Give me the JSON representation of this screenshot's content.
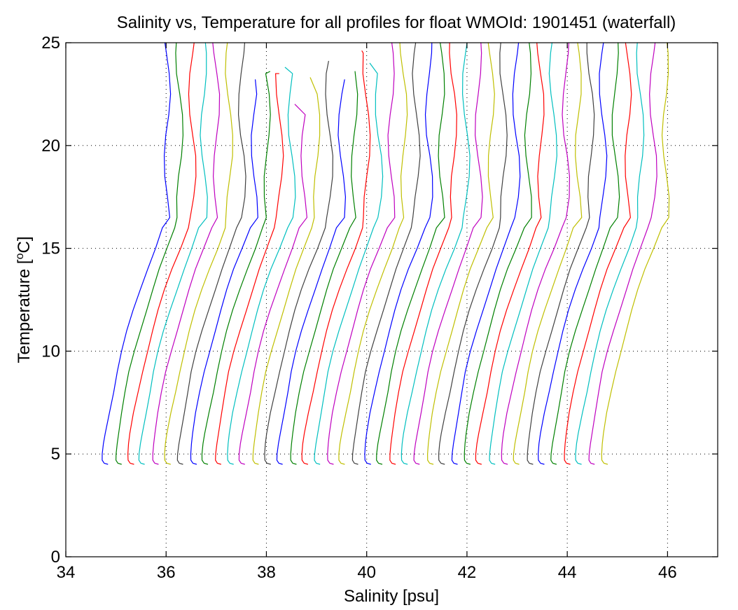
{
  "chart_data": {
    "type": "line",
    "title": "Salinity vs, Temperature for all profiles for float WMOId: 1901451 (waterfall)",
    "xlabel": "Salinity [psu]",
    "ylabel_main": "Temperature [",
    "ylabel_sup": "o",
    "ylabel_tail": "C]",
    "xlim": [
      34,
      47
    ],
    "ylim": [
      0,
      25
    ],
    "xticks": [
      34,
      36,
      38,
      40,
      42,
      44,
      46
    ],
    "yticks": [
      0,
      5,
      10,
      15,
      20,
      25
    ],
    "grid": true,
    "waterfall_offset_psu": 0.25,
    "colors": [
      "#0000ff",
      "#008000",
      "#ff0000",
      "#00bfbf",
      "#bf00bf",
      "#bfbf00",
      "#404040"
    ],
    "reference_profile": {
      "temperature": [
        4.5,
        4.55,
        4.7,
        5.0,
        5.5,
        6.0,
        7.0,
        8.0,
        9.0,
        10.0,
        11.0,
        12.0,
        13.0,
        14.0,
        15.0,
        16.0,
        16.5,
        17.5,
        18.5,
        19.5,
        20.5,
        21.5,
        22.5,
        23.5,
        24.5,
        25.0
      ],
      "salinity": [
        34.85,
        34.78,
        34.74,
        34.74,
        34.76,
        34.79,
        34.86,
        34.94,
        35.02,
        35.12,
        35.23,
        35.35,
        35.48,
        35.62,
        35.78,
        35.93,
        36.02,
        36.03,
        36.03,
        36.03,
        36.02,
        36.02,
        36.02,
        36.01,
        36.01,
        36.01
      ]
    },
    "series": [
      {
        "color": "#0000ff",
        "salinity_offset": 0.0,
        "top_temp": 25.0
      },
      {
        "color": "#008000",
        "salinity_offset": 0.25,
        "top_temp": 25.0
      },
      {
        "color": "#ff0000",
        "salinity_offset": 0.5,
        "top_temp": 25.0
      },
      {
        "color": "#00bfbf",
        "salinity_offset": 0.73,
        "top_temp": 25.0
      },
      {
        "color": "#bf00bf",
        "salinity_offset": 0.98,
        "top_temp": 25.0
      },
      {
        "color": "#bfbf00",
        "salinity_offset": 1.24,
        "top_temp": 25.0
      },
      {
        "color": "#404040",
        "salinity_offset": 1.49,
        "top_temp": 25.0
      },
      {
        "color": "#0000ff",
        "salinity_offset": 1.74,
        "top_temp": 23.2
      },
      {
        "color": "#008000",
        "salinity_offset": 1.99,
        "top_temp": 23.6
      },
      {
        "color": "#ff0000",
        "salinity_offset": 2.24,
        "top_temp": 23.5
      },
      {
        "color": "#00bfbf",
        "salinity_offset": 2.48,
        "top_temp": 23.8
      },
      {
        "color": "#bf00bf",
        "salinity_offset": 2.73,
        "top_temp": 22.0
      },
      {
        "color": "#bfbf00",
        "salinity_offset": 2.98,
        "top_temp": 23.3
      },
      {
        "color": "#404040",
        "salinity_offset": 3.23,
        "top_temp": 24.1
      },
      {
        "color": "#0000ff",
        "salinity_offset": 3.48,
        "top_temp": 23.2
      },
      {
        "color": "#008000",
        "salinity_offset": 3.73,
        "top_temp": 23.6
      },
      {
        "color": "#ff0000",
        "salinity_offset": 3.98,
        "top_temp": 24.6
      },
      {
        "color": "#00bfbf",
        "salinity_offset": 4.22,
        "top_temp": 24.0
      },
      {
        "color": "#bf00bf",
        "salinity_offset": 4.47,
        "top_temp": 25.0
      },
      {
        "color": "#bfbf00",
        "salinity_offset": 4.72,
        "top_temp": 25.0
      },
      {
        "color": "#404040",
        "salinity_offset": 4.97,
        "top_temp": 25.0
      },
      {
        "color": "#0000ff",
        "salinity_offset": 5.22,
        "top_temp": 25.0
      },
      {
        "color": "#008000",
        "salinity_offset": 5.47,
        "top_temp": 25.0
      },
      {
        "color": "#ff0000",
        "salinity_offset": 5.71,
        "top_temp": 25.0
      },
      {
        "color": "#00bfbf",
        "salinity_offset": 5.96,
        "top_temp": 25.0
      },
      {
        "color": "#bf00bf",
        "salinity_offset": 6.21,
        "top_temp": 25.0
      },
      {
        "color": "#bfbf00",
        "salinity_offset": 6.46,
        "top_temp": 25.0
      },
      {
        "color": "#404040",
        "salinity_offset": 6.71,
        "top_temp": 25.0
      },
      {
        "color": "#0000ff",
        "salinity_offset": 6.96,
        "top_temp": 25.0
      },
      {
        "color": "#008000",
        "salinity_offset": 7.2,
        "top_temp": 25.0
      },
      {
        "color": "#ff0000",
        "salinity_offset": 7.45,
        "top_temp": 25.0
      },
      {
        "color": "#00bfbf",
        "salinity_offset": 7.7,
        "top_temp": 25.0
      },
      {
        "color": "#bf00bf",
        "salinity_offset": 7.95,
        "top_temp": 25.0
      },
      {
        "color": "#bfbf00",
        "salinity_offset": 8.2,
        "top_temp": 25.0
      },
      {
        "color": "#404040",
        "salinity_offset": 8.45,
        "top_temp": 25.0
      },
      {
        "color": "#0000ff",
        "salinity_offset": 8.69,
        "top_temp": 25.0
      },
      {
        "color": "#008000",
        "salinity_offset": 8.94,
        "top_temp": 25.0
      },
      {
        "color": "#ff0000",
        "salinity_offset": 9.19,
        "top_temp": 25.0
      },
      {
        "color": "#00bfbf",
        "salinity_offset": 9.44,
        "top_temp": 25.0
      },
      {
        "color": "#bf00bf",
        "salinity_offset": 9.69,
        "top_temp": 25.0
      },
      {
        "color": "#bfbf00",
        "salinity_offset": 9.94,
        "top_temp": 25.0
      }
    ]
  }
}
